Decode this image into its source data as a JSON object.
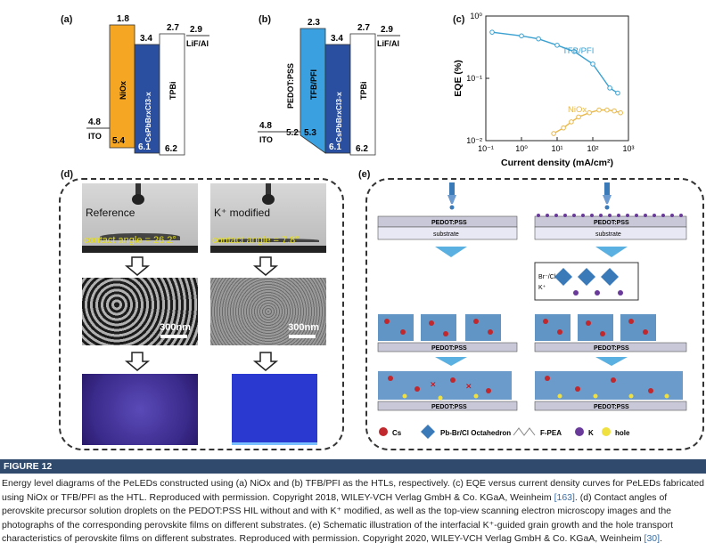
{
  "panel_labels": {
    "a": "(a)",
    "b": "(b)",
    "c": "(c)",
    "d": "(d)",
    "e": "(e)"
  },
  "panel_a": {
    "levels": {
      "lif_top": "2.9",
      "lif_label": "LiF/Al",
      "nio_top": "1.8",
      "nio_bottom": "5.4",
      "nio_label": "NiOx",
      "pvk_top": "3.4",
      "pvk_bottom": "6.1",
      "pvk_label": "CsPbBrxCl3-x",
      "tpbi_top": "2.7",
      "tpbi_bottom": "6.2",
      "tpbi_label": "TPBi",
      "ito_level": "4.8",
      "ito_label": "ITO"
    },
    "colors": {
      "nio": "#f5a623",
      "pvk": "#2a4fa0",
      "tpbi": "#ffffff"
    }
  },
  "panel_b": {
    "levels": {
      "tfb_top": "2.3",
      "tfb_bottom": "5.3",
      "tfb_label": "TFB/PFI",
      "pedot_level": "5.2",
      "pedot_label": "PEDOT:PSS",
      "pvk_top": "3.4",
      "pvk_bottom": "6.1",
      "pvk_label": "CsPbBrxCl3-x",
      "tpbi_top": "2.7",
      "tpbi_bottom": "6.2",
      "tpbi_label": "TPBi",
      "lif_top": "2.9",
      "lif_label": "LiF/Al",
      "ito_level": "4.8",
      "ito_label": "ITO"
    },
    "colors": {
      "tfb": "#3aa0e0",
      "pvk": "#2a4fa0"
    }
  },
  "chart_data": {
    "type": "scatter",
    "xlabel": "Current density (mA/cm²)",
    "ylabel": "EQE (%)",
    "xscale": "log",
    "yscale": "log",
    "xlim": [
      0.1,
      1000
    ],
    "ylim": [
      0.01,
      1
    ],
    "xticks": [
      "10⁻¹",
      "10⁰",
      "10¹",
      "10²",
      "10³"
    ],
    "yticks": [
      "10⁰",
      "10⁻¹",
      "10⁻²"
    ],
    "series": [
      {
        "name": "TFB/PFI",
        "color": "#3aa0d0",
        "x": [
          0.15,
          1,
          3,
          10,
          30,
          100,
          300,
          500
        ],
        "y": [
          0.55,
          0.48,
          0.43,
          0.34,
          0.27,
          0.17,
          0.07,
          0.058
        ]
      },
      {
        "name": "NiOx",
        "color": "#e8b84a",
        "x": [
          8,
          15,
          25,
          40,
          80,
          150,
          250,
          400,
          600
        ],
        "y": [
          0.013,
          0.016,
          0.02,
          0.024,
          0.028,
          0.031,
          0.031,
          0.03,
          0.028
        ]
      }
    ]
  },
  "panel_d": {
    "left": {
      "title": "Reference",
      "angle": "contact angle = 26.2°",
      "scale": "300nm"
    },
    "right": {
      "title": "K⁺ modified",
      "angle": "contact angle = 7.8°",
      "scale": "300nm"
    }
  },
  "panel_e": {
    "pedot": "PEDOT:PSS",
    "substrate": "substrate",
    "inset_left": "Br⁻/Cl⁻",
    "inset_k": "K⁺",
    "legend": {
      "cs": "Cs",
      "oct": "Pb-Br/Cl Octahedron",
      "fpea": "F-PEA",
      "k": "K",
      "hole": "hole"
    },
    "colors": {
      "cs": "#c0282d",
      "oct": "#3a7ab8",
      "k": "#6a3a9a",
      "hole": "#f0e040"
    }
  },
  "figure_label": "FIGURE 12",
  "caption": {
    "part1": "Energy level diagrams of the PeLEDs constructed using (a) NiOx and (b) TFB/PFI as the HTLs, respectively. (c) EQE versus current density curves for PeLEDs fabricated using NiOx or TFB/PFI as the HTL. Reproduced with permission. Copyright 2018, WILEY-VCH Verlag GmbH & Co. KGaA, Weinheim ",
    "ref1": "[163]",
    "part2": ". (d) Contact angles of perovskite precursor solution droplets on the PEDOT:PSS HIL without and with K⁺ modified, as well as the top-view scanning electron microscopy images and the photographs of the corresponding perovskite films on different substrates. (e) Schematic illustration of the interfacial K⁺-guided grain growth and the hole transport characteristics of perovskite films on different substrates. Reproduced with permission. Copyright 2020, WILEY-VCH Verlag GmbH & Co. KGaA, Weinheim ",
    "ref2": "[30]",
    "part3": "."
  }
}
